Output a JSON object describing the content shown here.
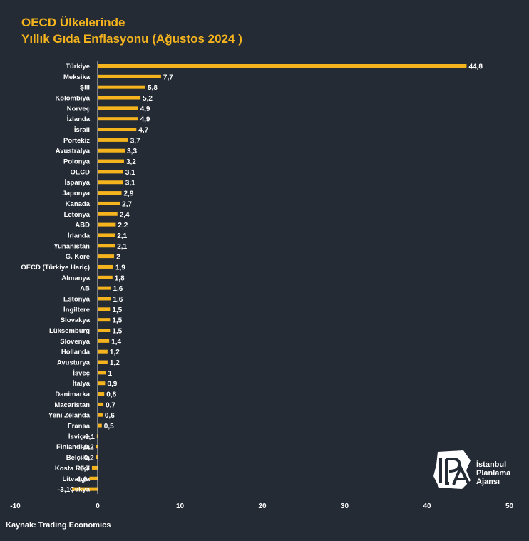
{
  "title_line1": "OECD Ülkelerinde",
  "title_line2": "Yıllık Gıda Enflasyonu (Ağustos 2024 )",
  "source": "Kaynak: Trading Economics",
  "logo": {
    "mark": "IPA",
    "line1": "İstanbul",
    "line2": "Planlama",
    "line3": "Ajansı"
  },
  "colors": {
    "background": "#242b35",
    "bar": "#f5b41e",
    "title": "#f5b41e",
    "text": "#ffffff"
  },
  "chart_data": {
    "type": "bar",
    "orientation": "horizontal",
    "categories": [
      "Türkiye",
      "Meksika",
      "Şili",
      "Kolombiya",
      "Norveç",
      "İzlanda",
      "İsrail",
      "Portekiz",
      "Avustralya",
      "Polonya",
      "OECD",
      "İspanya",
      "Japonya",
      "Kanada",
      "Letonya",
      "ABD",
      "İrlanda",
      "Yunanistan",
      "G. Kore",
      "OECD (Türkiye Hariç)",
      "Almanya",
      "AB",
      "Estonya",
      "İngiltere",
      "Slovakya",
      "Lüksemburg",
      "Slovenya",
      "Hollanda",
      "Avusturya",
      "İsveç",
      "İtalya",
      "Danimarka",
      "Macaristan",
      "Yeni Zelanda",
      "Fransa",
      "İsviçre",
      "Finlandiya",
      "Belçika",
      "Kosta Rika",
      "Litvanya",
      "Çekya"
    ],
    "values": [
      44.8,
      7.7,
      5.8,
      5.2,
      4.9,
      4.9,
      4.7,
      3.7,
      3.3,
      3.2,
      3.1,
      3.1,
      2.9,
      2.7,
      2.4,
      2.2,
      2.1,
      2.1,
      2.0,
      1.9,
      1.8,
      1.6,
      1.6,
      1.5,
      1.5,
      1.5,
      1.4,
      1.2,
      1.2,
      1.0,
      0.9,
      0.8,
      0.7,
      0.6,
      0.5,
      -0.1,
      -0.2,
      -0.2,
      -0.7,
      -1.0,
      -3.1
    ],
    "value_labels": [
      "44,8",
      "7,7",
      "5,8",
      "5,2",
      "4,9",
      "4,9",
      "4,7",
      "3,7",
      "3,3",
      "3,2",
      "3,1",
      "3,1",
      "2,9",
      "2,7",
      "2,4",
      "2,2",
      "2,1",
      "2,1",
      "2",
      "1,9",
      "1,8",
      "1,6",
      "1,6",
      "1,5",
      "1,5",
      "1,5",
      "1,4",
      "1,2",
      "1,2",
      "1",
      "0,9",
      "0,8",
      "0,7",
      "0,6",
      "0,5",
      "-0,1",
      "-0,2",
      "-0,2",
      "-0,7",
      "-1,0",
      "-3,1"
    ],
    "xlim": [
      -10,
      50
    ],
    "xticks": [
      "-10",
      "0",
      "10",
      "20",
      "30",
      "40",
      "50"
    ],
    "grid": false,
    "legend": "none"
  }
}
